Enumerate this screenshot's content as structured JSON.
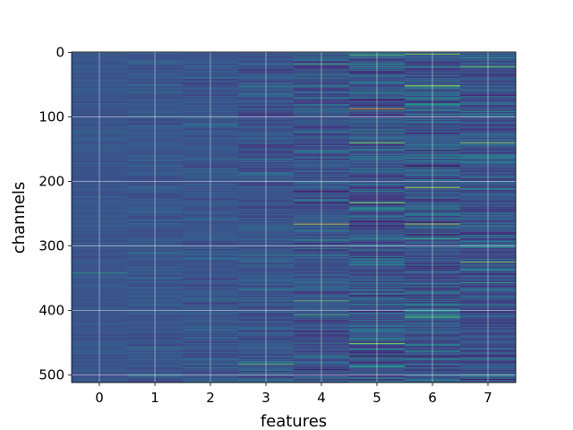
{
  "chart_data": {
    "type": "heatmap",
    "xlabel": "features",
    "ylabel": "channels",
    "x_ticks": [
      "0",
      "1",
      "2",
      "3",
      "4",
      "5",
      "6",
      "7"
    ],
    "y_ticks": [
      "0",
      "100",
      "200",
      "300",
      "400",
      "500"
    ],
    "y_tick_values": [
      0,
      100,
      200,
      300,
      400,
      500
    ],
    "xlim": [
      -0.5,
      7.5
    ],
    "ylim": [
      511.5,
      -0.5
    ],
    "n_rows": 512,
    "n_cols": 8,
    "grid": true,
    "colormap": "viridis",
    "colorbar": false,
    "column_spread": [
      0.06,
      0.08,
      0.1,
      0.14,
      0.18,
      0.24,
      0.22,
      0.2
    ],
    "highlights": [
      {
        "row": 3,
        "col": 6,
        "value": 0.9
      },
      {
        "row": 5,
        "col": 5,
        "value": 0.85
      },
      {
        "row": 22,
        "col": 7,
        "value": 0.88
      },
      {
        "row": 52,
        "col": 6,
        "value": 0.95
      },
      {
        "row": 88,
        "col": 5,
        "value": 1.0
      },
      {
        "row": 140,
        "col": 5,
        "value": 0.9
      },
      {
        "row": 140,
        "col": 7,
        "value": 0.92
      },
      {
        "row": 210,
        "col": 6,
        "value": 0.95
      },
      {
        "row": 233,
        "col": 5,
        "value": 0.9
      },
      {
        "row": 262,
        "col": 5,
        "value": 0.0
      },
      {
        "row": 266,
        "col": 4,
        "value": 0.98
      },
      {
        "row": 266,
        "col": 6,
        "value": 0.95
      },
      {
        "row": 325,
        "col": 7,
        "value": 0.9
      },
      {
        "row": 342,
        "col": 0,
        "value": 0.75
      },
      {
        "row": 385,
        "col": 4,
        "value": 0.85
      },
      {
        "row": 407,
        "col": 4,
        "value": 0.8
      },
      {
        "row": 410,
        "col": 6,
        "value": 0.85
      },
      {
        "row": 451,
        "col": 5,
        "value": 0.9
      },
      {
        "row": 483,
        "col": 3,
        "value": 0.85
      }
    ]
  }
}
